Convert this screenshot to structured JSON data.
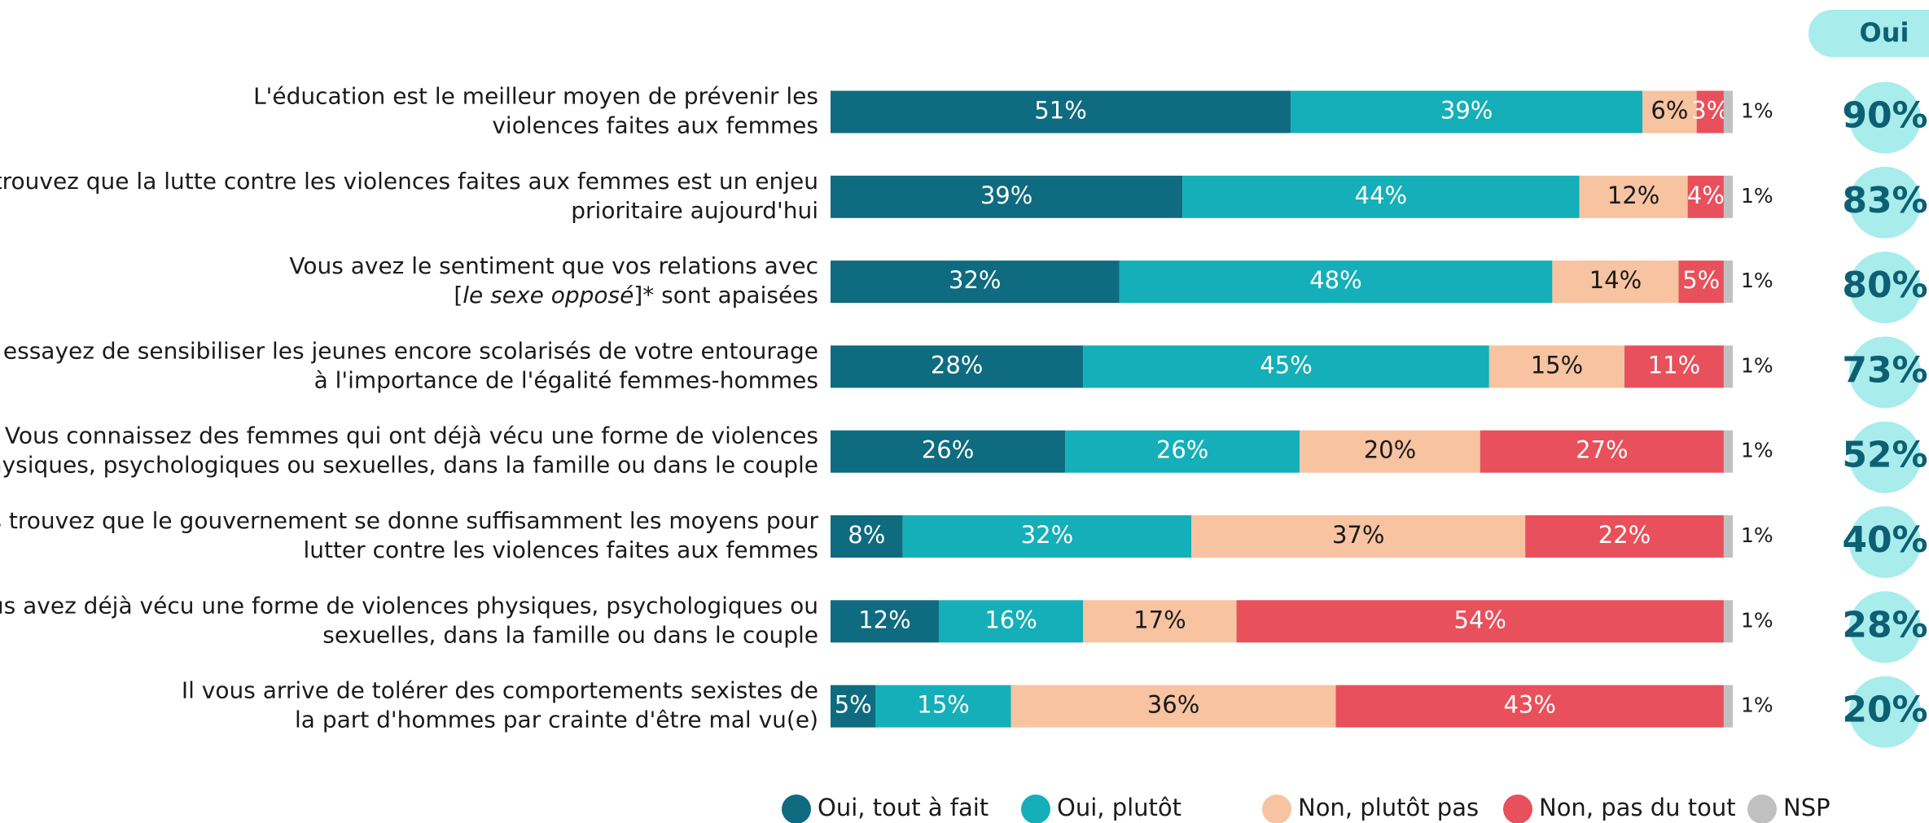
{
  "chart_data": {
    "type": "stacked_barh",
    "categories": [
      [
        "L'éducation est le meilleur moyen de prévenir les",
        "violences faites aux femmes"
      ],
      [
        "Vous trouvez que la lutte contre les violences faites aux femmes est un enjeu",
        "prioritaire aujourd'hui"
      ],
      [
        "Vous avez le sentiment que vos relations avec",
        [
          "[",
          {
            "text": "le sexe opposé",
            "italic": true
          },
          "]* sont apaisées"
        ]
      ],
      [
        "Vous essayez de sensibiliser les jeunes encore scolarisés de votre entourage",
        "à l'importance de l'égalité femmes-hommes"
      ],
      [
        "Vous connaissez des femmes qui ont déjà vécu une forme de violences",
        "physiques, psychologiques ou sexuelles, dans la famille ou dans le couple"
      ],
      [
        "Vous trouvez que le gouvernement se donne suffisamment les moyens pour",
        "lutter contre les violences faites aux femmes"
      ],
      [
        "Vous avez déjà vécu une forme de violences physiques, psychologiques ou",
        "sexuelles, dans la famille ou dans le couple"
      ],
      [
        "Il vous arrive de tolérer des comportements sexistes de",
        "la part d'hommes par crainte d'être mal vu(e)"
      ]
    ],
    "xlim": [
      0,
      100
    ],
    "series": [
      {
        "name": "Oui, tout à fait",
        "color": "#0e6b80",
        "label_color": "#ffffff",
        "values": [
          51,
          39,
          32,
          28,
          26,
          8,
          12,
          5
        ],
        "value_labels": [
          "51%",
          "39%",
          "32%",
          "28%",
          "26%",
          "8%",
          "12%",
          "5%"
        ]
      },
      {
        "name": "Oui, plutôt",
        "color": "#14afb8",
        "label_color": "#ffffff",
        "values": [
          39,
          44,
          48,
          45,
          26,
          32,
          16,
          15
        ],
        "value_labels": [
          "39%",
          "44%",
          "48%",
          "45%",
          "26%",
          "32%",
          "16%",
          "15%"
        ]
      },
      {
        "name": "Non, plutôt pas",
        "color": "#f7c3a0",
        "label_color": "#1a1a1a",
        "values": [
          6,
          12,
          14,
          15,
          20,
          37,
          17,
          36
        ],
        "value_labels": [
          "6%",
          "12%",
          "14%",
          "15%",
          "20%",
          "37%",
          "17%",
          "36%"
        ]
      },
      {
        "name": "Non, pas du tout",
        "color": "#e8505b",
        "label_color": "#ffffff",
        "values": [
          3,
          4,
          5,
          11,
          27,
          22,
          54,
          43
        ],
        "value_labels": [
          "3%",
          "4%",
          "5%",
          "11%",
          "27%",
          "22%",
          "54%",
          "43%"
        ]
      },
      {
        "name": "NSP",
        "color": "#c0c0c0",
        "label_color": "#1a1a1a",
        "label_outside": true,
        "values": [
          1,
          1,
          1,
          1,
          1,
          1,
          1,
          1
        ],
        "value_labels": [
          "1%",
          "1%",
          "1%",
          "1%",
          "1%",
          "1%",
          "1%",
          "1%"
        ]
      }
    ],
    "totals": {
      "title": "Oui",
      "values": [
        90,
        83,
        80,
        73,
        52,
        40,
        28,
        20
      ],
      "value_labels": [
        "90%",
        "83%",
        "80%",
        "73%",
        "52%",
        "40%",
        "28%",
        "20%"
      ],
      "color": "#0d5f73",
      "background": "#a8ecec"
    }
  }
}
